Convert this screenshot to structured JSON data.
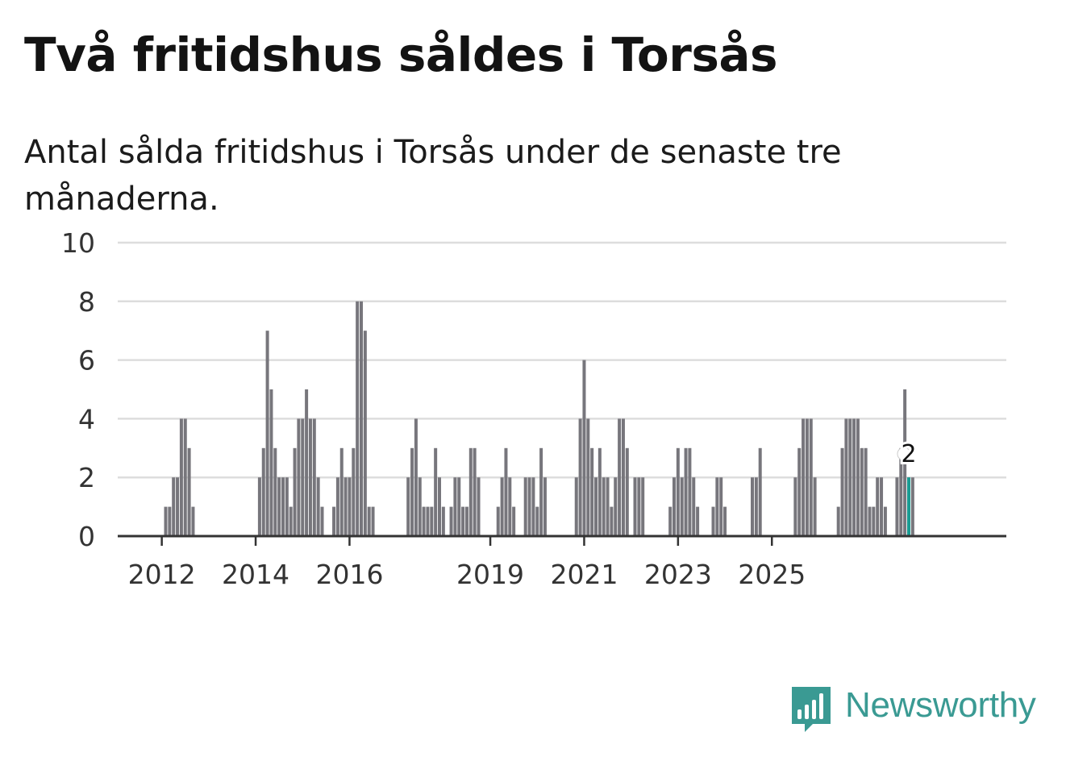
{
  "header": {
    "title": "Två fritidshus såldes i Torsås",
    "subtitle": "Antal sålda fritidshus i Torsås under de senaste tre månaderna."
  },
  "brand": {
    "name": "Newsworthy"
  },
  "colors": {
    "bar": "#77767c",
    "highlight": "#1a9c93",
    "grid": "#dddddd",
    "axis": "#333333",
    "brand": "#3a9a93"
  },
  "chart_data": {
    "type": "bar",
    "title": "Två fritidshus såldes i Torsås",
    "subtitle": "Antal sålda fritidshus i Torsås under de senaste tre månaderna.",
    "xlabel": "",
    "ylabel": "",
    "ylim": [
      0,
      10
    ],
    "yticks": [
      0,
      2,
      4,
      6,
      8,
      10
    ],
    "x_tick_labels": [
      {
        "label": "2012",
        "index": 9
      },
      {
        "label": "2014",
        "index": 33
      },
      {
        "label": "2016",
        "index": 57
      },
      {
        "label": "2019",
        "index": 93
      },
      {
        "label": "2021",
        "index": 117
      },
      {
        "label": "2023",
        "index": 141
      },
      {
        "label": "2025",
        "index": 165
      }
    ],
    "values": [
      0,
      0,
      0,
      0,
      0,
      0,
      0,
      0,
      0,
      0,
      1,
      1,
      2,
      2,
      4,
      4,
      3,
      1,
      0,
      0,
      0,
      0,
      0,
      0,
      0,
      0,
      0,
      0,
      0,
      0,
      0,
      0,
      0,
      0,
      2,
      3,
      7,
      5,
      3,
      2,
      2,
      2,
      1,
      3,
      4,
      4,
      5,
      4,
      4,
      2,
      1,
      0,
      0,
      1,
      2,
      3,
      2,
      2,
      3,
      8,
      8,
      7,
      1,
      1,
      0,
      0,
      0,
      0,
      0,
      0,
      0,
      0,
      2,
      3,
      4,
      2,
      1,
      1,
      1,
      3,
      2,
      1,
      0,
      1,
      2,
      2,
      1,
      1,
      3,
      3,
      2,
      0,
      0,
      0,
      0,
      1,
      2,
      3,
      2,
      1,
      0,
      0,
      2,
      2,
      2,
      1,
      3,
      2,
      0,
      0,
      0,
      0,
      0,
      0,
      0,
      2,
      4,
      6,
      4,
      3,
      2,
      3,
      2,
      2,
      1,
      2,
      4,
      4,
      3,
      0,
      2,
      2,
      2,
      0,
      0,
      0,
      0,
      0,
      0,
      1,
      2,
      3,
      2,
      3,
      3,
      2,
      1,
      0,
      0,
      0,
      1,
      2,
      2,
      1,
      0,
      0,
      0,
      0,
      0,
      0,
      2,
      2,
      3,
      0,
      0,
      0,
      0,
      0,
      0,
      0,
      0,
      2,
      3,
      4,
      4,
      4,
      2,
      0,
      0,
      0,
      0,
      0,
      1,
      3,
      4,
      4,
      4,
      4,
      3,
      3,
      1,
      1,
      2,
      2,
      1,
      0,
      0,
      2,
      3,
      5,
      2,
      2
    ],
    "highlight": {
      "index": 200,
      "value": 2,
      "label": "2"
    }
  }
}
